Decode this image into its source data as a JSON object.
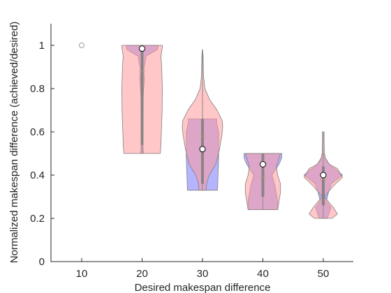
{
  "chart_data": {
    "type": "violin",
    "xlabel": "Desired makespan difference",
    "ylabel": "Normalized makespan difference (achieved/desired)",
    "categories": [
      "10",
      "20",
      "30",
      "40",
      "50"
    ],
    "ylim": [
      0,
      1.1
    ],
    "yticks": [
      "0",
      "0.2",
      "0.4",
      "0.6",
      "0.8",
      "1"
    ],
    "grid": false,
    "legend": "none",
    "series": [
      {
        "color": "#ff9999",
        "violins": [
          null,
          {
            "profile": [
              [
                0.5,
                0.9
              ],
              [
                0.54,
                0.93
              ],
              [
                0.6,
                0.95
              ],
              [
                0.7,
                0.99
              ],
              [
                0.8,
                1.0
              ],
              [
                0.9,
                0.97
              ],
              [
                0.95,
                0.93
              ],
              [
                0.99,
                1.0
              ],
              [
                1.0,
                1.0
              ]
            ],
            "median": 0.985,
            "q1": 0.54,
            "q3": 0.99
          },
          {
            "profile": [
              [
                0.33,
                0.18
              ],
              [
                0.36,
                0.2
              ],
              [
                0.4,
                0.33
              ],
              [
                0.45,
                0.66
              ],
              [
                0.52,
                0.84
              ],
              [
                0.58,
                0.95
              ],
              [
                0.62,
                1.0
              ],
              [
                0.65,
                0.98
              ],
              [
                0.7,
                0.72
              ],
              [
                0.75,
                0.35
              ],
              [
                0.8,
                0.12
              ],
              [
                0.86,
                0.05
              ],
              [
                0.95,
                0.03
              ],
              [
                0.98,
                0.01
              ]
            ],
            "median": 0.52,
            "q1": 0.36,
            "q3": 0.66
          },
          {
            "profile": [
              [
                0.24,
                0.73
              ],
              [
                0.28,
                0.8
              ],
              [
                0.32,
                0.87
              ],
              [
                0.36,
                0.87
              ],
              [
                0.4,
                0.73
              ],
              [
                0.44,
                0.67
              ],
              [
                0.48,
                0.8
              ],
              [
                0.5,
                0.87
              ]
            ],
            "median": 0.45,
            "q1": 0.3,
            "q3": 0.5
          },
          {
            "profile": [
              [
                0.2,
                0.44
              ],
              [
                0.22,
                0.7
              ],
              [
                0.25,
                0.5
              ],
              [
                0.3,
                0.06
              ],
              [
                0.35,
                0.5
              ],
              [
                0.39,
                0.95
              ],
              [
                0.43,
                0.7
              ],
              [
                0.45,
                0.3
              ],
              [
                0.48,
                0.1
              ],
              [
                0.5,
                0.06
              ],
              [
                0.55,
                0.04
              ],
              [
                0.6,
                0.04
              ]
            ],
            "median": 0.4,
            "q1": 0.26,
            "q3": 0.44
          }
        ]
      },
      {
        "color": "#7777ff",
        "violins": [
          {
            "points": [
              1.0
            ],
            "median": 1.0
          },
          {
            "profile": [
              [
                0.5,
                0.08
              ],
              [
                0.52,
                0.06
              ],
              [
                0.55,
                0.04
              ],
              [
                0.7,
                0.05
              ],
              [
                0.74,
                0.05
              ],
              [
                0.8,
                0.08
              ],
              [
                0.85,
                0.12
              ],
              [
                0.88,
                0.07
              ],
              [
                0.95,
                0.2
              ],
              [
                0.98,
                0.75
              ],
              [
                1.0,
                0.8
              ]
            ],
            "median": 0.88,
            "q1": 0.7,
            "q3": 0.99
          },
          {
            "profile": [
              [
                0.33,
                0.74
              ],
              [
                0.4,
                0.77
              ],
              [
                0.48,
                0.8
              ],
              [
                0.55,
                0.8
              ],
              [
                0.6,
                0.8
              ],
              [
                0.64,
                0.7
              ],
              [
                0.66,
                0.7
              ]
            ],
            "median": 0.58,
            "q1": 0.36,
            "q3": 0.66
          },
          {
            "profile": [
              [
                0.24,
                0.73
              ],
              [
                0.28,
                0.73
              ],
              [
                0.35,
                0.6
              ],
              [
                0.4,
                0.45
              ],
              [
                0.45,
                0.8
              ],
              [
                0.48,
                0.93
              ],
              [
                0.5,
                0.93
              ]
            ],
            "median": 0.39,
            "q1": 0.3,
            "q3": 0.5
          },
          {
            "profile": [
              [
                0.2,
                0.2
              ],
              [
                0.25,
                0.38
              ],
              [
                0.28,
                0.15
              ],
              [
                0.32,
                0.26
              ],
              [
                0.36,
                0.4
              ],
              [
                0.4,
                0.95
              ],
              [
                0.42,
                0.7
              ],
              [
                0.44,
                0.4
              ],
              [
                0.47,
                0.12
              ],
              [
                0.5,
                0.06
              ]
            ],
            "median": 0.38,
            "q1": 0.26,
            "q3": 0.44
          }
        ]
      }
    ]
  }
}
